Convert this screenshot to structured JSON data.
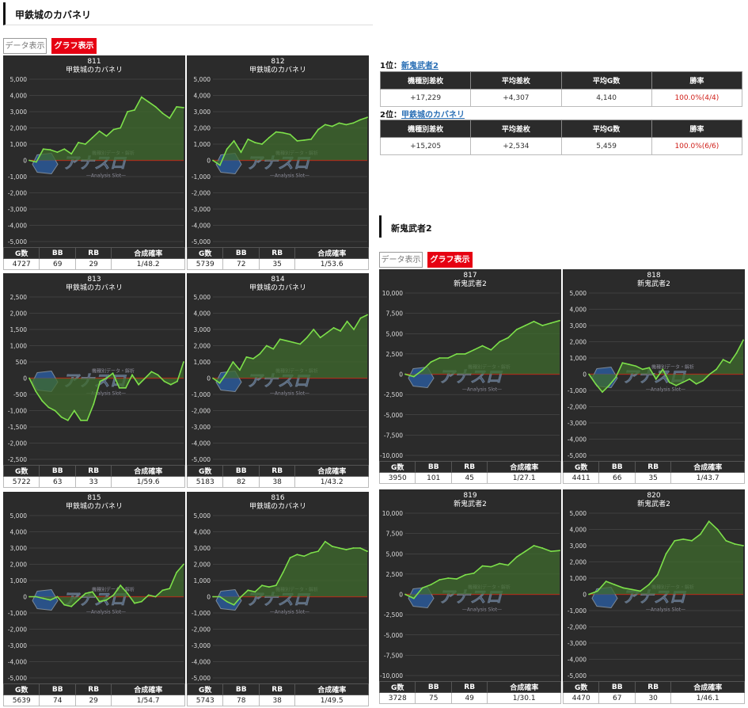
{
  "sections": [
    {
      "title": "甲鉄城のカバネリ",
      "tabs": [
        "データ表示",
        "グラフ表示"
      ]
    },
    {
      "title": "新鬼武者2",
      "tabs": [
        "データ表示",
        "グラフ表示"
      ]
    }
  ],
  "watermark": {
    "brand": "アナスロ",
    "sub": "—Analysis Slot—",
    "top": "機種別データ・解析"
  },
  "stat_headers": [
    "G数",
    "BB",
    "RB",
    "合成確率"
  ],
  "ranking": [
    {
      "rank_label": "1位：",
      "machine": "新鬼武者2",
      "headers": [
        "機種別差枚",
        "平均差枚",
        "平均G数",
        "勝率"
      ],
      "values": [
        "+17,229",
        "+4,307",
        "4,140",
        "100.0%(4/4)"
      ]
    },
    {
      "rank_label": "2位：",
      "machine": "甲鉄城のカバネリ",
      "headers": [
        "機種別差枚",
        "平均差枚",
        "平均G数",
        "勝率"
      ],
      "values": [
        "+15,205",
        "+2,534",
        "5,459",
        "100.0%(6/6)"
      ]
    }
  ],
  "colors": {
    "line": "#7de04a",
    "fill": "#3f6b2d",
    "zero": "#d11",
    "panel": "#2b2b2b",
    "accent": "#e60012",
    "link": "#2a6fb5"
  },
  "chart_data": [
    {
      "type": "line",
      "number": "811",
      "machine": "甲鉄城のカバネリ",
      "ylim": [
        -5000,
        5000
      ],
      "yticks": [
        5000,
        4000,
        3000,
        2000,
        1000,
        0,
        -1000,
        -2000,
        -3000,
        -4000,
        -5000
      ],
      "values": [
        0,
        -100,
        700,
        650,
        500,
        700,
        400,
        1100,
        1000,
        1400,
        1800,
        1500,
        1900,
        2000,
        3000,
        3100,
        3900,
        3600,
        3300,
        2900,
        2600,
        3300,
        3250
      ],
      "stats": [
        "4727",
        "69",
        "29",
        "1/48.2"
      ]
    },
    {
      "type": "line",
      "number": "812",
      "machine": "甲鉄城のカバネリ",
      "ylim": [
        -5000,
        5000
      ],
      "yticks": [
        5000,
        4000,
        3000,
        2000,
        1000,
        0,
        -1000,
        -2000,
        -3000,
        -4000,
        -5000
      ],
      "values": [
        0,
        -300,
        700,
        1200,
        500,
        1300,
        1100,
        1000,
        1400,
        1750,
        1700,
        1600,
        1200,
        1250,
        1300,
        1900,
        2200,
        2100,
        2300,
        2200,
        2300,
        2500,
        2650
      ],
      "stats": [
        "5739",
        "72",
        "35",
        "1/53.6"
      ]
    },
    {
      "type": "line",
      "number": "813",
      "machine": "甲鉄城のカバネリ",
      "ylim": [
        -2500,
        2500
      ],
      "yticks": [
        2500,
        2000,
        1500,
        1000,
        500,
        0,
        -500,
        -1000,
        -1500,
        -2000,
        -2500
      ],
      "values": [
        0,
        -400,
        -700,
        -900,
        -1000,
        -1200,
        -1300,
        -1000,
        -1300,
        -1300,
        -800,
        -100,
        0,
        150,
        -300,
        -300,
        100,
        -200,
        0,
        200,
        100,
        -100,
        -200,
        -100,
        500
      ],
      "stats": [
        "5722",
        "63",
        "33",
        "1/59.6"
      ]
    },
    {
      "type": "line",
      "number": "814",
      "machine": "甲鉄城のカバネリ",
      "ylim": [
        -5000,
        5000
      ],
      "yticks": [
        5000,
        4000,
        3000,
        2000,
        1000,
        0,
        -1000,
        -2000,
        -3000,
        -4000,
        -5000
      ],
      "values": [
        0,
        -300,
        300,
        1000,
        500,
        1300,
        1200,
        1500,
        2000,
        1800,
        2400,
        2300,
        2200,
        2100,
        2500,
        3000,
        2500,
        2800,
        3100,
        2900,
        3500,
        3000,
        3700,
        3900
      ],
      "stats": [
        "5183",
        "82",
        "38",
        "1/43.2"
      ]
    },
    {
      "type": "line",
      "number": "815",
      "machine": "甲鉄城のカバネリ",
      "ylim": [
        -5000,
        5000
      ],
      "yticks": [
        5000,
        4000,
        3000,
        2000,
        1000,
        0,
        -1000,
        -2000,
        -3000,
        -4000,
        -5000
      ],
      "values": [
        0,
        0,
        -100,
        -200,
        0,
        -500,
        -600,
        -200,
        200,
        300,
        -300,
        -200,
        100,
        700,
        200,
        -400,
        -300,
        100,
        0,
        400,
        500,
        1500,
        2000
      ],
      "stats": [
        "5639",
        "74",
        "29",
        "1/54.7"
      ]
    },
    {
      "type": "line",
      "number": "816",
      "machine": "甲鉄城のカバネリ",
      "ylim": [
        -5000,
        5000
      ],
      "yticks": [
        5000,
        4000,
        3000,
        2000,
        1000,
        0,
        -1000,
        -2000,
        -3000,
        -4000,
        -5000
      ],
      "values": [
        0,
        0,
        -300,
        -500,
        0,
        400,
        300,
        700,
        600,
        700,
        1500,
        2400,
        2600,
        2500,
        2700,
        2800,
        3400,
        3100,
        3000,
        2900,
        3000,
        3000,
        2800
      ],
      "stats": [
        "5743",
        "78",
        "38",
        "1/49.5"
      ]
    },
    {
      "type": "line",
      "number": "817",
      "machine": "新鬼武者2",
      "ylim": [
        -10000,
        10000
      ],
      "yticks": [
        10000,
        7500,
        5000,
        2500,
        0,
        -2500,
        -5000,
        -7500,
        -10000
      ],
      "values": [
        0,
        -300,
        500,
        1500,
        2000,
        2000,
        2500,
        2500,
        3000,
        3500,
        3000,
        4000,
        4500,
        5500,
        6000,
        6500,
        6000,
        6300,
        6600
      ],
      "stats": [
        "3950",
        "101",
        "45",
        "1/27.1"
      ]
    },
    {
      "type": "line",
      "number": "818",
      "machine": "新鬼武者2",
      "ylim": [
        -5000,
        5000
      ],
      "yticks": [
        5000,
        4000,
        3000,
        2000,
        1000,
        0,
        -1000,
        -2000,
        -3000,
        -4000,
        -5000
      ],
      "values": [
        0,
        -600,
        -1100,
        -700,
        -200,
        700,
        600,
        500,
        300,
        400,
        -300,
        300,
        -500,
        -700,
        -500,
        -300,
        -600,
        -400,
        0,
        300,
        900,
        700,
        1300,
        2100
      ],
      "stats": [
        "4411",
        "66",
        "35",
        "1/43.7"
      ]
    },
    {
      "type": "line",
      "number": "819",
      "machine": "新鬼武者2",
      "ylim": [
        -10000,
        10000
      ],
      "yticks": [
        10000,
        7500,
        5000,
        2500,
        0,
        -2500,
        -5000,
        -7500,
        -10000
      ],
      "values": [
        0,
        -500,
        800,
        1200,
        1800,
        2000,
        1900,
        2400,
        2600,
        3500,
        3400,
        3800,
        3600,
        4600,
        5300,
        6000,
        5700,
        5300,
        5400
      ],
      "stats": [
        "3728",
        "75",
        "49",
        "1/30.1"
      ]
    },
    {
      "type": "line",
      "number": "820",
      "machine": "新鬼武者2",
      "ylim": [
        -5000,
        5000
      ],
      "yticks": [
        5000,
        4000,
        3000,
        2000,
        1000,
        0,
        -1000,
        -2000,
        -3000,
        -4000,
        -5000
      ],
      "values": [
        0,
        200,
        800,
        600,
        400,
        300,
        200,
        600,
        1200,
        2500,
        3300,
        3400,
        3300,
        3700,
        4500,
        4000,
        3300,
        3100,
        3000
      ],
      "stats": [
        "4470",
        "67",
        "30",
        "1/46.1"
      ]
    }
  ]
}
